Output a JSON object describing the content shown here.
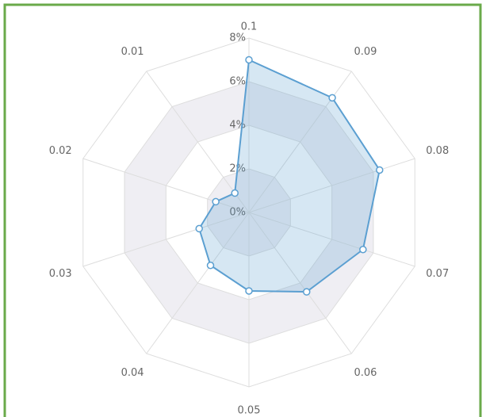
{
  "chart_data": {
    "type": "radar",
    "categories": [
      "0.1",
      "0.09",
      "0.08",
      "0.07",
      "0.06",
      "0.05",
      "0.04",
      "0.03",
      "0.02",
      "0.01"
    ],
    "values": [
      7,
      6.5,
      6.3,
      5.5,
      4.5,
      3.6,
      3.0,
      2.4,
      1.6,
      1.1
    ],
    "color": "#5b9fd1",
    "ylim": [
      0,
      8
    ],
    "yticks": [
      {
        "value": 0,
        "label": "0%"
      },
      {
        "value": 2,
        "label": "2%"
      },
      {
        "value": 4,
        "label": "4%"
      },
      {
        "value": 6,
        "label": "6%"
      },
      {
        "value": 8,
        "label": "8%"
      }
    ],
    "grid": true
  }
}
